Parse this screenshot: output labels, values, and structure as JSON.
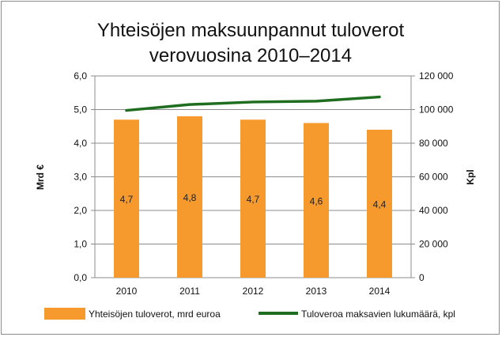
{
  "chart_data": {
    "type": "bar",
    "title_line1": "Yhteisöjen maksuunpannut tuloverot",
    "title_line2": "verovuosina 2010–2014",
    "categories": [
      "2010",
      "2011",
      "2012",
      "2013",
      "2014"
    ],
    "series": [
      {
        "name": "Yhteisöjen tuloverot, mrd euroa",
        "type": "bar",
        "axis": "left",
        "values": [
          4.7,
          4.8,
          4.7,
          4.6,
          4.4
        ],
        "labels": [
          "4,7",
          "4,8",
          "4,7",
          "4,6",
          "4,4"
        ],
        "color": "#f79a2e"
      },
      {
        "name": "Tuloveroa maksavien lukumäärä, kpl",
        "type": "line",
        "axis": "right",
        "values": [
          99500,
          103000,
          104500,
          105000,
          107500
        ],
        "color": "#1f6e1f"
      }
    ],
    "ylabel_left": "Mrd €",
    "ylabel_right": "Kpl",
    "ylim_left": [
      0,
      6
    ],
    "ylim_right": [
      0,
      120000
    ],
    "yticks_left": [
      "0,0",
      "1,0",
      "2,0",
      "3,0",
      "4,0",
      "5,0",
      "6,0"
    ],
    "yticks_right": [
      "0",
      "20 000",
      "40 000",
      "60 000",
      "80 000",
      "100 000",
      "120 000"
    ],
    "grid": true,
    "legend_position": "bottom",
    "grid_color": "#8c8c8c"
  }
}
